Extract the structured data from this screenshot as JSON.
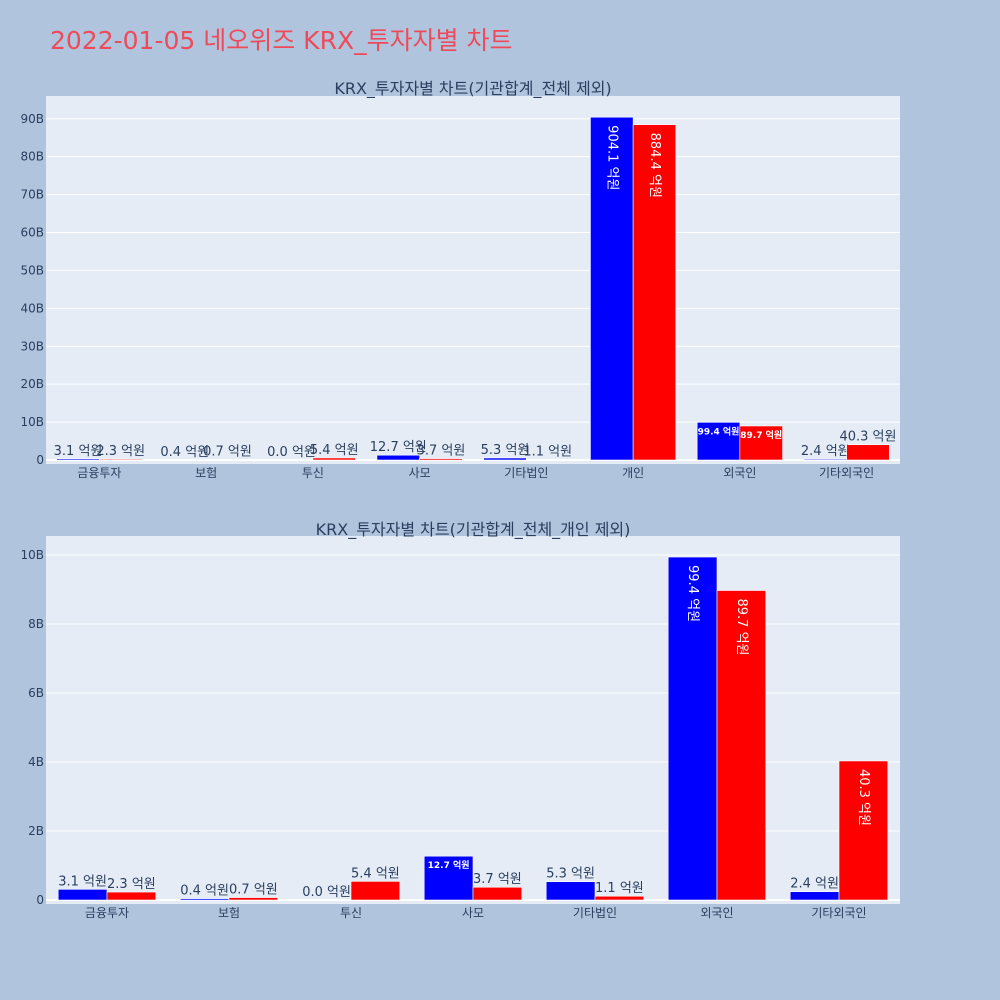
{
  "page_title": "2022-01-05 네오위즈 KRX_투자자별 차트",
  "colors": {
    "page_bg": "#b0c4de",
    "plot_bg": "#e5ecf6",
    "grid": "#ffffff",
    "title": "#ef4a5a",
    "text": "#2a3f5f",
    "buy": "#0000ff",
    "sell": "#ff0000"
  },
  "chart_data": [
    {
      "type": "bar",
      "title": "KRX_투자자별 차트(기관합계_전체 제외)",
      "categories": [
        "금융투자",
        "보험",
        "투신",
        "사모",
        "기타법인",
        "개인",
        "외국인",
        "기타외국인"
      ],
      "series": [
        {
          "color": "#0000ff",
          "values": [
            310000000,
            40000000,
            0,
            1270000000,
            530000000,
            90410000000,
            9940000000,
            240000000
          ],
          "labels": [
            "3.1 억원",
            "0.4 억원",
            "0.0 억원",
            "12.7 억원",
            "5.3 억원",
            "904.1 억원",
            "99.4 억원",
            "2.4 억원"
          ]
        },
        {
          "color": "#ff0000",
          "values": [
            230000000,
            70000000,
            540000000,
            370000000,
            110000000,
            88440000000,
            8970000000,
            4030000000
          ],
          "labels": [
            "2.3 억원",
            "0.7 억원",
            "5.4 억원",
            "3.7 억원",
            "1.1 억원",
            "884.4 억원",
            "89.7 억원",
            "40.3 억원"
          ]
        }
      ],
      "yticks": [
        0,
        10000000000,
        20000000000,
        30000000000,
        40000000000,
        50000000000,
        60000000000,
        70000000000,
        80000000000,
        90000000000
      ],
      "ytick_labels": [
        "0",
        "10B",
        "20B",
        "30B",
        "40B",
        "50B",
        "60B",
        "70B",
        "80B",
        "90B"
      ],
      "ylim": [
        0,
        96000000000
      ],
      "grid": true
    },
    {
      "type": "bar",
      "title": "KRX_투자자별 차트(기관합계_전체_개인 제외)",
      "categories": [
        "금융투자",
        "보험",
        "투신",
        "사모",
        "기타법인",
        "외국인",
        "기타외국인"
      ],
      "series": [
        {
          "color": "#0000ff",
          "values": [
            310000000,
            40000000,
            0,
            1270000000,
            530000000,
            9940000000,
            240000000
          ],
          "labels": [
            "3.1 억원",
            "0.4 억원",
            "0.0 억원",
            "12.7 억원",
            "5.3 억원",
            "99.4 억원",
            "2.4 억원"
          ]
        },
        {
          "color": "#ff0000",
          "values": [
            230000000,
            70000000,
            540000000,
            370000000,
            110000000,
            8970000000,
            4030000000
          ],
          "labels": [
            "2.3 억원",
            "0.7 억원",
            "5.4 억원",
            "3.7 억원",
            "1.1 억원",
            "89.7 억원",
            "40.3 억원"
          ]
        }
      ],
      "yticks": [
        0,
        2000000000,
        4000000000,
        6000000000,
        8000000000,
        10000000000
      ],
      "ytick_labels": [
        "0",
        "2B",
        "4B",
        "6B",
        "8B",
        "10B"
      ],
      "ylim": [
        0,
        10550000000
      ],
      "grid": true
    }
  ]
}
